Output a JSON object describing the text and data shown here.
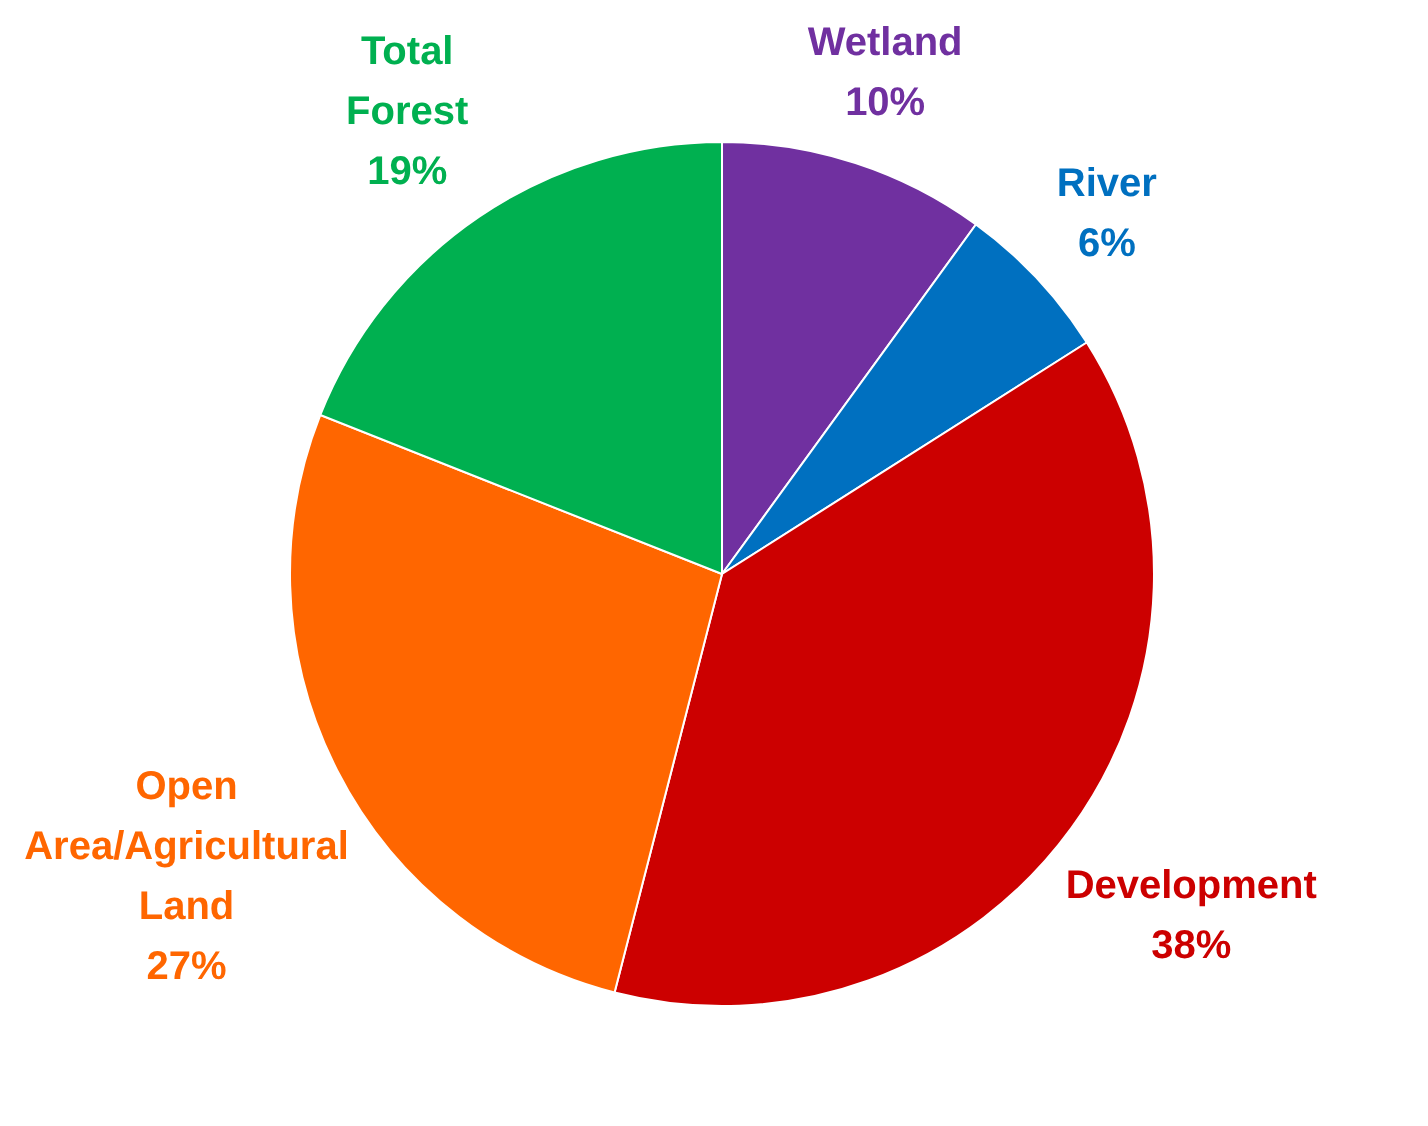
{
  "chart_data": {
    "type": "pie",
    "categories": [
      "Wetland",
      "River",
      "Development",
      "Open Area/Agricultural Land",
      "Total Forest"
    ],
    "values": [
      10,
      6,
      38,
      27,
      19
    ],
    "value_labels": [
      "10%",
      "6%",
      "38%",
      "27%",
      "19%"
    ],
    "colors": [
      "#7030a0",
      "#0070c0",
      "#cc0000",
      "#ff6600",
      "#00b050"
    ]
  }
}
